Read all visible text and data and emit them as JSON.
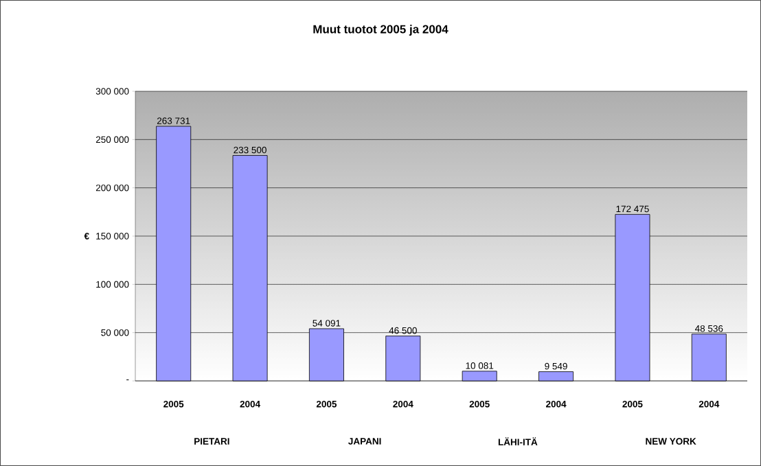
{
  "chart_data": {
    "type": "bar",
    "title": "Muut tuotot 2005 ja 2004",
    "ylabel": "€",
    "categories": [
      "2005",
      "2004",
      "2005",
      "2004",
      "2005",
      "2004",
      "2005",
      "2004"
    ],
    "values": [
      263731,
      233500,
      54091,
      46500,
      10081,
      9549,
      172475,
      48536
    ],
    "value_labels": [
      "263 731",
      "233 500",
      "54 091",
      "46 500",
      "10 081",
      "9 549",
      "172 475",
      "48 536"
    ],
    "color": "#9999ff",
    "annotations": [
      "PIETARI",
      "JAPANI",
      "LÄHI-ITÄ",
      "NEW YORK"
    ],
    "ylim": [
      0,
      300000
    ],
    "yticks": [
      {
        "value": 0,
        "label": "-"
      },
      {
        "value": 50000,
        "label": "50 000"
      },
      {
        "value": 100000,
        "label": "100 000"
      },
      {
        "value": 150000,
        "label": "150 000"
      },
      {
        "value": 200000,
        "label": "200 000"
      },
      {
        "value": 250000,
        "label": "250 000"
      },
      {
        "value": 300000,
        "label": "300 000"
      }
    ],
    "grid": "y"
  }
}
